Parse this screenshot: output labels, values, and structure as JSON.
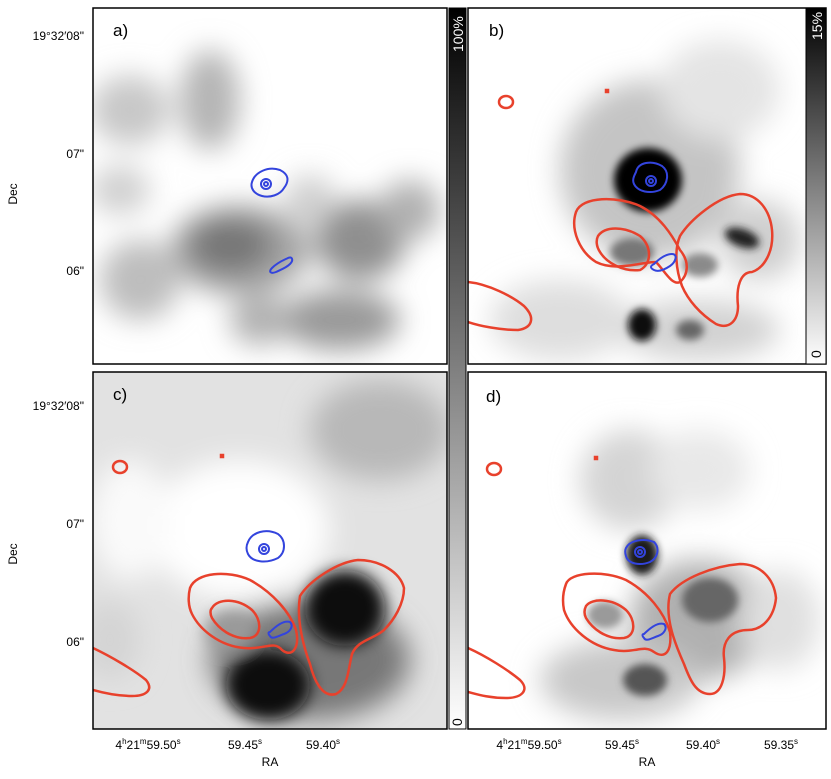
{
  "panels": [
    {
      "id": "a",
      "label": "a)"
    },
    {
      "id": "b",
      "label": "b)"
    },
    {
      "id": "c",
      "label": "c)"
    },
    {
      "id": "d",
      "label": "d)"
    }
  ],
  "axes": {
    "y_label": "Dec",
    "x_label": "RA",
    "dec_ticks": [
      {
        "pre": "19°32′08″",
        "text": "19°32′08\""
      },
      {
        "text": "07\""
      },
      {
        "text": "06\""
      }
    ],
    "ra_ticks_left": [
      "4h21m59.50s",
      "59.45s",
      "59.40s"
    ],
    "ra_ticks_right": [
      "4h21m59.50s",
      "59.45s",
      "59.40s",
      "59.35s"
    ],
    "ra_ticks_left_display": [
      {
        "h": "4",
        "m": "21",
        "s": "59.50"
      },
      {
        "s": "59.45"
      },
      {
        "s": "59.40"
      }
    ],
    "ra_ticks_right_display": [
      {
        "h": "4",
        "m": "21",
        "s": "59.50"
      },
      {
        "s": "59.45"
      },
      {
        "s": "59.40"
      },
      {
        "s": "59.35"
      }
    ]
  },
  "colorbars": [
    {
      "top_label": "100%",
      "bottom_label": "0"
    },
    {
      "top_label": "15%",
      "bottom_label": "0"
    }
  ],
  "contour_colors": {
    "red": "#e8412c",
    "blue": "#3344dd"
  }
}
